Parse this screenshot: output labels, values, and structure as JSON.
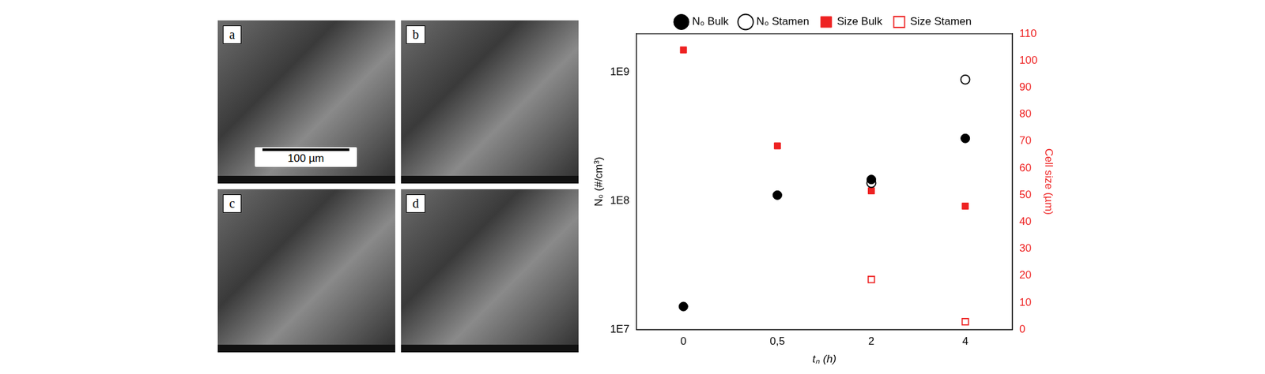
{
  "chart_data": {
    "type": "scatter",
    "x_label": "tₙ (h)",
    "y_label": "N₀ (#/cm³)",
    "y2_label": "Cell size (µm)",
    "categories": [
      "0",
      "0,5",
      "2",
      "4"
    ],
    "series": [
      {
        "name": "N₀ Bulk",
        "color": "#000000",
        "marker": "circle",
        "values": [
          15100000,
          111000000,
          147000000,
          307000000
        ]
      },
      {
        "name": "N₀ Stamen",
        "color": "#000000",
        "marker": "open_circle",
        "values": [
          null,
          null,
          138000000,
          880000000
        ]
      },
      {
        "name": "Size Bulk",
        "color": "#ee2222",
        "marker": "square",
        "axis": "y2",
        "values": [
          104,
          68.3,
          51.6,
          45.9
        ]
      },
      {
        "name": "Size Stamen",
        "color": "#ee2222",
        "marker": "open_square",
        "axis": "y2",
        "values": [
          null,
          null,
          18.6,
          2.9
        ]
      }
    ],
    "log": "y",
    "ylim": [
      10000000,
      2000000000
    ],
    "yticks": [
      {
        "value": 10000000,
        "label": "1E7"
      },
      {
        "value": 100000000,
        "label": "1E8"
      },
      {
        "value": 1000000000,
        "label": "1E9"
      }
    ],
    "y2lim": [
      0,
      110
    ],
    "y2ticks": [
      0,
      10,
      20,
      30,
      40,
      50,
      60,
      70,
      80,
      90,
      100,
      110
    ],
    "grid": false,
    "legend": "top"
  },
  "micrographs": {
    "labels": [
      "a",
      "b",
      "c",
      "d"
    ],
    "scale_bar": "100 µm"
  }
}
